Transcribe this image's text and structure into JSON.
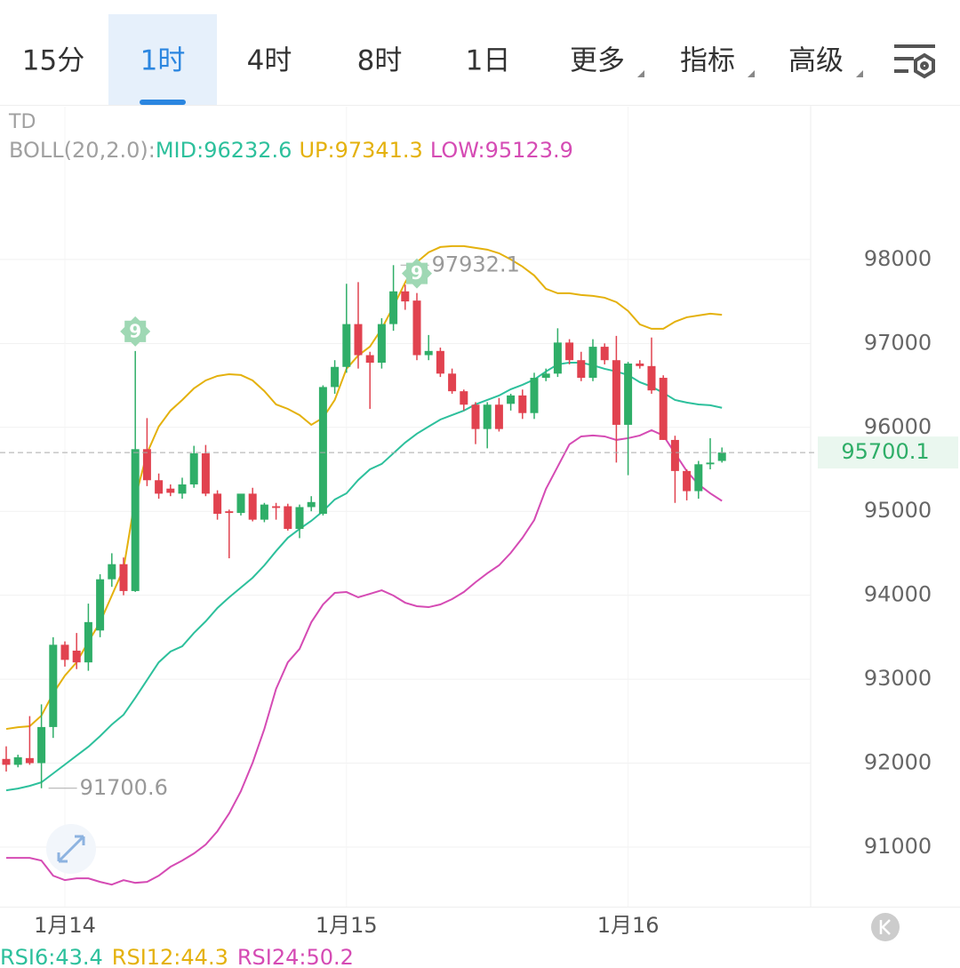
{
  "header": {
    "tabs": [
      {
        "label": "15分",
        "dropdown": false
      },
      {
        "label": "1时",
        "dropdown": false
      },
      {
        "label": "4时",
        "dropdown": false
      },
      {
        "label": "8时",
        "dropdown": false
      },
      {
        "label": "1日",
        "dropdown": false
      },
      {
        "label": "更多",
        "dropdown": true
      },
      {
        "label": "指标",
        "dropdown": true
      },
      {
        "label": "高级",
        "dropdown": true
      }
    ],
    "active": 1
  },
  "chart_data": {
    "type": "candlestick",
    "title": "TD",
    "categories": [
      null,
      null,
      null,
      null,
      null,
      "1月14",
      null,
      null,
      null,
      null,
      null,
      null,
      null,
      null,
      null,
      null,
      null,
      null,
      null,
      null,
      null,
      null,
      null,
      null,
      null,
      null,
      null,
      null,
      null,
      "1月15",
      null,
      null,
      null,
      null,
      null,
      null,
      null,
      null,
      null,
      null,
      null,
      null,
      null,
      null,
      null,
      null,
      null,
      null,
      null,
      null,
      null,
      null,
      null,
      "1月16",
      null,
      null,
      null,
      null,
      null,
      null,
      null,
      null
    ],
    "open": [
      92050,
      91980,
      92060,
      92000,
      92430,
      93410,
      93340,
      93200,
      93580,
      94190,
      94370,
      94050,
      95740,
      95370,
      95270,
      95210,
      95320,
      95690,
      95210,
      95000,
      94980,
      95210,
      94900,
      95060,
      95060,
      94790,
      95050,
      94970,
      96480,
      96720,
      97230,
      96860,
      96770,
      97230,
      97620,
      97510,
      96860,
      96910,
      96640,
      96430,
      96270,
      95980,
      96270,
      96280,
      96380,
      96170,
      96590,
      96640,
      97010,
      96800,
      96590,
      96960,
      96800,
      96030,
      96760,
      96730,
      96590,
      95850,
      95480,
      95240,
      95560,
      95600
    ],
    "high": [
      92200,
      92100,
      92560,
      92700,
      93500,
      93450,
      93550,
      93900,
      94250,
      94500,
      94450,
      96910,
      96110,
      95450,
      95320,
      95400,
      95780,
      95790,
      95250,
      95020,
      95200,
      95280,
      95100,
      95100,
      95090,
      95080,
      95180,
      96500,
      96800,
      97710,
      97730,
      96900,
      97300,
      97932.1,
      97700,
      97600,
      97100,
      96950,
      96700,
      96450,
      96300,
      96300,
      96350,
      96400,
      96450,
      96650,
      96700,
      97180,
      97050,
      96900,
      97050,
      97000,
      97090,
      96780,
      96800,
      97070,
      96620,
      95900,
      95500,
      95600,
      95870,
      95760
    ],
    "low": [
      91900,
      91950,
      91980,
      91700.6,
      92300,
      93150,
      93120,
      93100,
      93500,
      94100,
      94000,
      94040,
      95300,
      95150,
      95180,
      95150,
      95280,
      95180,
      94900,
      94440,
      94950,
      94880,
      94870,
      94900,
      94770,
      94680,
      95000,
      94950,
      96400,
      96650,
      96700,
      96220,
      96700,
      97150,
      97400,
      96800,
      96800,
      96600,
      96400,
      96200,
      95800,
      95750,
      95950,
      96200,
      96100,
      96100,
      96550,
      96600,
      96750,
      96550,
      96550,
      96750,
      95580,
      95430,
      96700,
      96400,
      95850,
      95100,
      95130,
      95150,
      95500,
      95580
    ],
    "close": [
      91980,
      92070,
      92000,
      92430,
      93410,
      93230,
      93200,
      93680,
      94190,
      94370,
      94050,
      95740,
      95370,
      95210,
      95220,
      95320,
      95690,
      95210,
      94970,
      94980,
      95210,
      94900,
      95080,
      95040,
      94790,
      95050,
      95110,
      96480,
      96720,
      97230,
      96860,
      96770,
      97230,
      97620,
      97500,
      96860,
      96910,
      96640,
      96430,
      96270,
      95980,
      96270,
      95980,
      96380,
      96170,
      96590,
      96640,
      97010,
      96800,
      96590,
      96960,
      96800,
      96030,
      96760,
      96730,
      96440,
      95850,
      95480,
      95240,
      95560,
      95580,
      95700.1
    ],
    "up_color": "#2fae68",
    "down_color": "#e1424f",
    "indicator_title": "BOLL(20,2.0):",
    "series": [
      {
        "name": "MID:",
        "color": "#2dc09c",
        "values": [
          91676,
          91697,
          91729,
          91771,
          91877,
          91983,
          92089,
          92195,
          92322,
          92460,
          92576,
          92778,
          92990,
          93201,
          93329,
          93392,
          93551,
          93689,
          93848,
          93975,
          94091,
          94208,
          94356,
          94526,
          94684,
          94790,
          94886,
          95002,
          95140,
          95214,
          95373,
          95500,
          95564,
          95691,
          95818,
          95924,
          96009,
          96093,
          96146,
          96199,
          96273,
          96326,
          96379,
          96454,
          96506,
          96570,
          96665,
          96750,
          96771,
          96771,
          96739,
          96697,
          96665,
          96623,
          96538,
          96485,
          96411,
          96326,
          96295,
          96273,
          96263,
          96232.6
        ]
      },
      {
        "name": "UP:",
        "color": "#e4b10d",
        "values": [
          92407,
          92428,
          92439,
          92566,
          92831,
          93042,
          93201,
          93445,
          93678,
          93996,
          94314,
          95161,
          95691,
          96009,
          96199,
          96326,
          96464,
          96559,
          96612,
          96633,
          96623,
          96559,
          96432,
          96273,
          96220,
          96146,
          96030,
          96114,
          96326,
          96697,
          96856,
          96962,
          97174,
          97439,
          97725,
          97968,
          98085,
          98148,
          98159,
          98159,
          98138,
          98117,
          98074,
          98000,
          97915,
          97809,
          97650,
          97597,
          97597,
          97576,
          97566,
          97544,
          97492,
          97386,
          97227,
          97174,
          97174,
          97258,
          97311,
          97333,
          97354,
          97341.3
        ]
      },
      {
        "name": "LOW:",
        "color": "#d54bb4",
        "values": [
          90871,
          90871,
          90871,
          90839,
          90659,
          90606,
          90627,
          90627,
          90585,
          90553,
          90606,
          90574,
          90585,
          90659,
          90765,
          90839,
          90924,
          91030,
          91189,
          91401,
          91666,
          92004,
          92407,
          92884,
          93201,
          93360,
          93678,
          93890,
          94028,
          94038,
          93975,
          94017,
          94059,
          93996,
          93911,
          93869,
          93858,
          93890,
          93954,
          94038,
          94155,
          94261,
          94356,
          94504,
          94684,
          94896,
          95267,
          95532,
          95797,
          95892,
          95903,
          95892,
          95850,
          95871,
          95903,
          95966,
          95903,
          95691,
          95479,
          95320,
          95214,
          95123.9
        ]
      }
    ],
    "td_markers": [
      {
        "index": 11,
        "label": "9"
      },
      {
        "index": 35,
        "label": "9"
      }
    ],
    "ylim": [
      90290,
      99820
    ],
    "yticks": [
      91000,
      92000,
      93000,
      94000,
      95000,
      96000,
      97000,
      98000
    ],
    "grid": true,
    "rsi": [
      {
        "label": "RSI6:",
        "value": 43.4,
        "color": "#2dc09c"
      },
      {
        "label": "RSI12:",
        "value": 44.3,
        "color": "#e4b10d"
      },
      {
        "label": "RSI24:",
        "value": 50.2,
        "color": "#d54bb4"
      }
    ]
  }
}
